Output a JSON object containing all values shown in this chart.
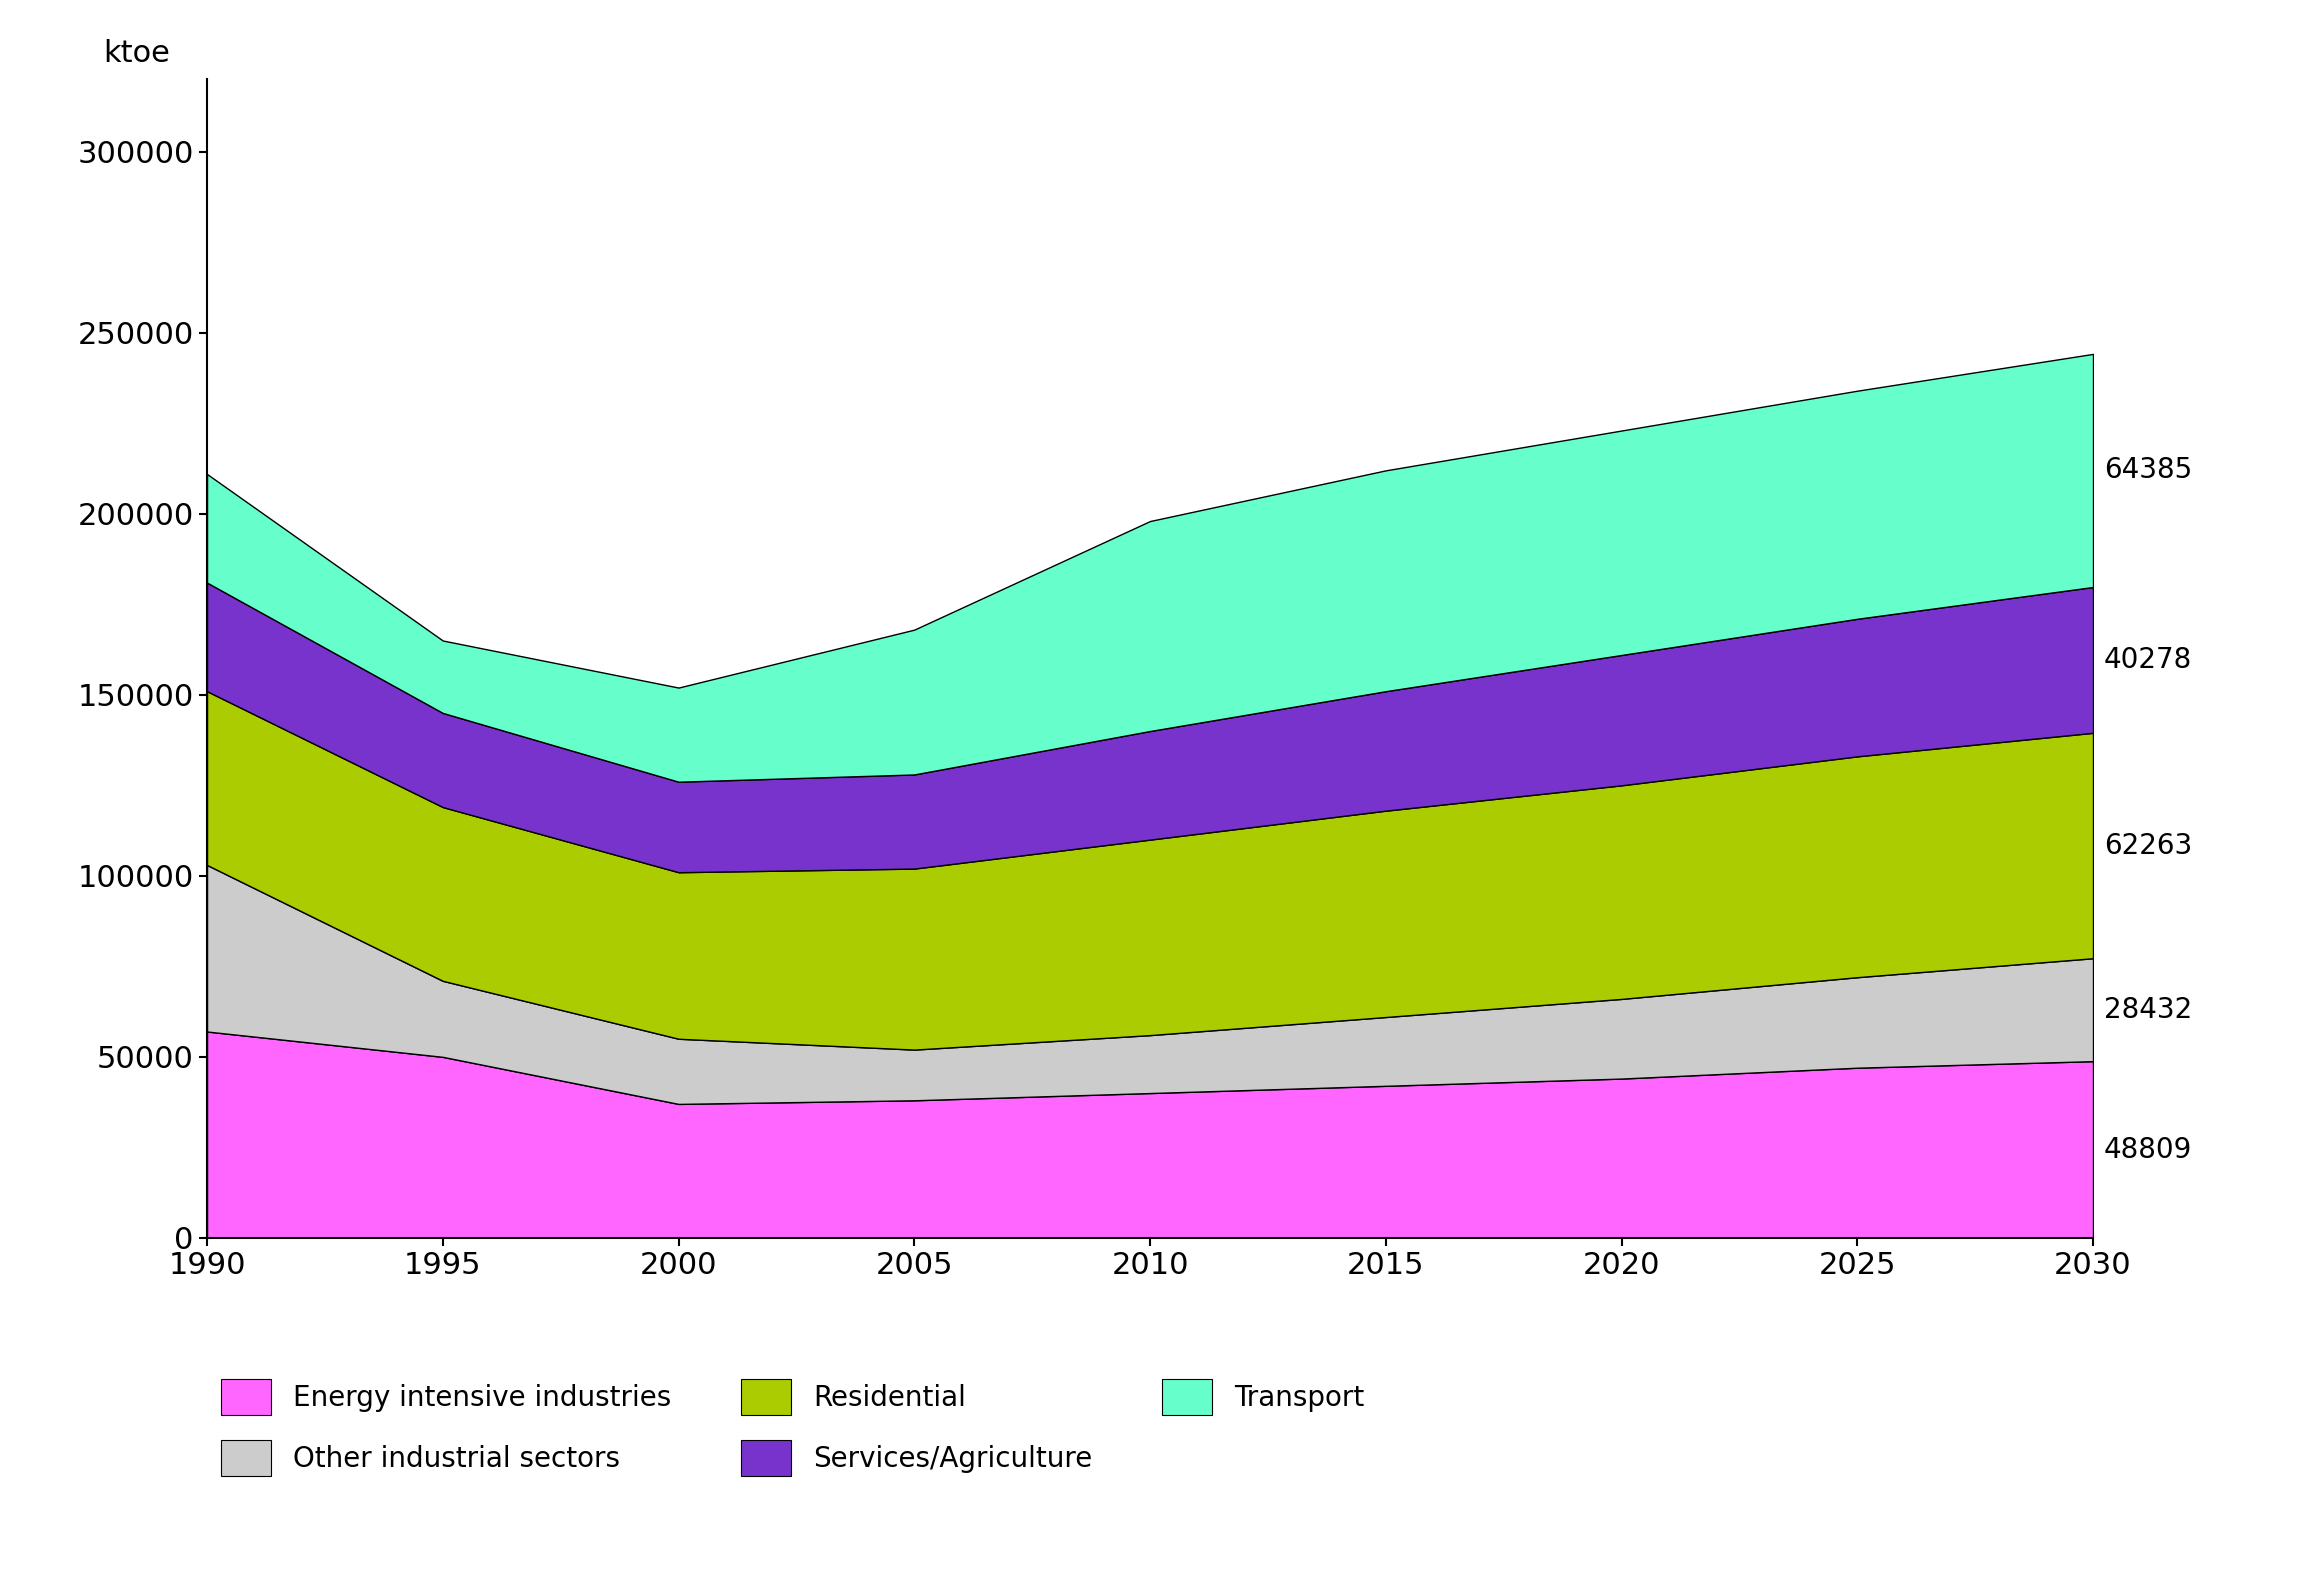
{
  "years": [
    1990,
    1995,
    2000,
    2005,
    2010,
    2015,
    2020,
    2025,
    2030
  ],
  "sectors": [
    {
      "name": "Energy intensive industries",
      "color": "#FF66FF",
      "values": [
        57000,
        50000,
        37000,
        38000,
        40000,
        42000,
        44000,
        47000,
        48809
      ]
    },
    {
      "name": "Other industrial sectors",
      "color": "#CCCCCC",
      "values": [
        46000,
        21000,
        18000,
        14000,
        16000,
        19000,
        22000,
        25000,
        28432
      ]
    },
    {
      "name": "Residential",
      "color": "#AACC00",
      "values": [
        48000,
        48000,
        46000,
        50000,
        54000,
        57000,
        59000,
        61000,
        62263
      ]
    },
    {
      "name": "Services/Agriculture",
      "color": "#7733CC",
      "values": [
        30000,
        26000,
        25000,
        26000,
        30000,
        33000,
        36000,
        38000,
        40278
      ]
    },
    {
      "name": "Transport",
      "color": "#66FFCC",
      "values": [
        30000,
        20000,
        26000,
        40000,
        58000,
        61000,
        62000,
        63000,
        64385
      ]
    }
  ],
  "ylabel": "ktoe",
  "ylim": [
    0,
    320000
  ],
  "yticks": [
    0,
    50000,
    100000,
    150000,
    200000,
    250000,
    300000
  ],
  "right_labels": [
    "48809",
    "28432",
    "62263",
    "40278",
    "64385"
  ],
  "background_color": "#FFFFFF"
}
